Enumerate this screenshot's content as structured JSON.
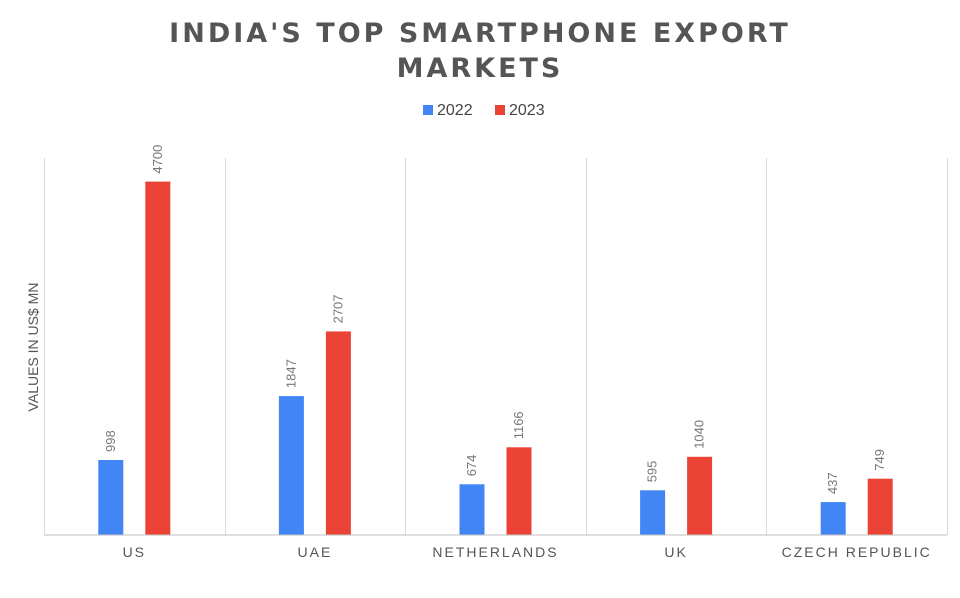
{
  "chart_data": {
    "type": "bar",
    "title_lines": [
      "INDIA'S TOP SMARTPHONE EXPORT",
      "MARKETS"
    ],
    "ylabel": "VALUES IN US$ MN",
    "xlabel": "",
    "categories": [
      "US",
      "UAE",
      "NETHERLANDS",
      "UK",
      "CZECH REPUBLIC"
    ],
    "series": [
      {
        "name": "2022",
        "color": "#4285f4",
        "values": [
          998,
          1847,
          674,
          595,
          437
        ]
      },
      {
        "name": "2023",
        "color": "#ea4335",
        "values": [
          4700,
          2707,
          1166,
          1040,
          749
        ]
      }
    ],
    "ylim": [
      0,
      5000
    ],
    "legend_position": "top-center",
    "grid": "vertical-category-separators"
  }
}
